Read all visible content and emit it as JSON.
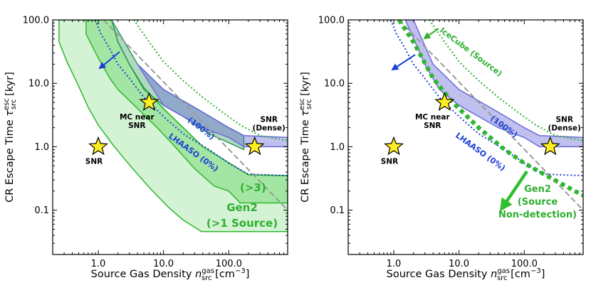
{
  "chart_data": [
    {
      "type": "area",
      "panel": "left",
      "xscale": "log",
      "yscale": "log",
      "xlim": [
        0.2,
        800
      ],
      "ylim": [
        0.02,
        100
      ],
      "xlabel_main": "Source Gas Density ",
      "xlabel_sym": "n",
      "xlabel_sup": "gas",
      "xlabel_sub": "src",
      "xlabel_unit": " [cm",
      "xlabel_unit_sup": "−3",
      "xlabel_close": "]",
      "ylabel_main": "CR Escape Time ",
      "ylabel_sym": "τ",
      "ylabel_sup": "esc",
      "ylabel_sub": "src",
      "ylabel_unit": " [kyr]",
      "xticks": [
        {
          "v": 1,
          "label": "1.0"
        },
        {
          "v": 10,
          "label": "10.0"
        },
        {
          "v": 100,
          "label": "100.0"
        }
      ],
      "yticks": [
        {
          "v": 0.1,
          "label": "0.1"
        },
        {
          "v": 1,
          "label": "1.0"
        },
        {
          "v": 10,
          "label": "10.0"
        },
        {
          "v": 100,
          "label": "100.0"
        }
      ],
      "regions": [
        {
          "name": "Gen2 (>1 Source)",
          "color": "#3cc83c",
          "opacity": 0.22,
          "edge": "#2db82d",
          "points": [
            [
              0.25,
              100
            ],
            [
              0.25,
              45
            ],
            [
              0.33,
              22
            ],
            [
              0.5,
              9
            ],
            [
              0.7,
              4.2
            ],
            [
              1,
              2.2
            ],
            [
              1.7,
              1.05
            ],
            [
              3,
              0.52
            ],
            [
              6,
              0.23
            ],
            [
              12,
              0.11
            ],
            [
              20,
              0.07
            ],
            [
              38,
              0.046
            ],
            [
              800,
              0.046
            ],
            [
              800,
              0.35
            ],
            [
              200,
              0.36
            ],
            [
              40,
              1.0
            ],
            [
              10,
              4.0
            ],
            [
              5,
              8.5
            ],
            [
              3,
              20
            ],
            [
              2,
              45
            ],
            [
              1.6,
              100
            ]
          ]
        },
        {
          "name": "Gen2 (>3)",
          "color": "#3cc83c",
          "opacity": 0.32,
          "edge": "#2db82d",
          "points": [
            [
              0.65,
              100
            ],
            [
              0.65,
              60
            ],
            [
              1,
              25
            ],
            [
              1.5,
              12
            ],
            [
              2,
              8
            ],
            [
              4,
              4
            ],
            [
              8,
              2
            ],
            [
              15,
              1.0
            ],
            [
              30,
              0.45
            ],
            [
              60,
              0.24
            ],
            [
              100,
              0.2
            ],
            [
              150,
              0.13
            ],
            [
              800,
              0.13
            ],
            [
              800,
              0.35
            ],
            [
              200,
              0.36
            ],
            [
              40,
              1.0
            ],
            [
              10,
              4.0
            ],
            [
              5,
              8.5
            ],
            [
              3,
              20
            ],
            [
              2,
              45
            ],
            [
              1.6,
              100
            ]
          ]
        },
        {
          "name": "Gen2 (100%)",
          "color": "#2f9a5a",
          "opacity": 0.38,
          "edge": "#2f9a5a",
          "points": [
            [
              1.6,
              100
            ],
            [
              4,
              20
            ],
            [
              10,
              8
            ],
            [
              40,
              3.5
            ],
            [
              100,
              2.0
            ],
            [
              170,
              1.5
            ],
            [
              170,
              0.9
            ],
            [
              50,
              1.6
            ],
            [
              20,
              3.0
            ],
            [
              10,
              4.5
            ],
            [
              5,
              8
            ],
            [
              3,
              20
            ],
            [
              2,
              45
            ]
          ]
        },
        {
          "name": "LHAASO (100%)",
          "color": "#6a6ad8",
          "opacity": 0.42,
          "edge": "#6a6ad8",
          "points": [
            [
              4,
              20
            ],
            [
              10,
              8
            ],
            [
              40,
              3.5
            ],
            [
              100,
              2.0
            ],
            [
              170,
              1.5
            ],
            [
              800,
              1.4
            ],
            [
              800,
              1.0
            ],
            [
              170,
              1.0
            ],
            [
              100,
              1.4
            ],
            [
              40,
              2.0
            ],
            [
              20,
              3.0
            ],
            [
              10,
              4.5
            ]
          ]
        }
      ],
      "lines": [
        {
          "name": "IceCube (Source)",
          "color": "#2fb02f",
          "dash": "2 3",
          "width": 2,
          "points": [
            [
              3.5,
              100
            ],
            [
              6,
              45
            ],
            [
              10,
              22
            ],
            [
              20,
              11
            ],
            [
              40,
              6
            ],
            [
              80,
              3.5
            ],
            [
              150,
              2.2
            ],
            [
              300,
              1.5
            ],
            [
              800,
              1.25
            ]
          ]
        },
        {
          "name": "LHAASO (0%)",
          "color": "#1a3fd6",
          "dash": "2 3",
          "width": 2,
          "points": [
            [
              0.9,
              100
            ],
            [
              1.1,
              60
            ],
            [
              1.5,
              35
            ],
            [
              2,
              20
            ],
            [
              3,
              12
            ],
            [
              5,
              6
            ],
            [
              10,
              3
            ],
            [
              20,
              1.6
            ],
            [
              50,
              0.9
            ],
            [
              100,
              0.55
            ],
            [
              200,
              0.37
            ],
            [
              800,
              0.35
            ]
          ]
        },
        {
          "name": "Dense scaling",
          "color": "#999999",
          "dash": "8 4",
          "width": 2,
          "points": [
            [
              1.2,
              100
            ],
            [
              800,
              0.1
            ]
          ]
        }
      ],
      "stars": [
        {
          "label": "SNR",
          "x": 1,
          "y": 1.0
        },
        {
          "label_l1": "MC near",
          "label_l2": "SNR",
          "x": 6,
          "y": 5.0
        },
        {
          "label_l1": "SNR",
          "label_l2": "(Dense)",
          "x": 250,
          "y": 1.0
        }
      ],
      "annotations": {
        "pct100": "(100%)",
        "lhaaso": "LHAASO (0%)",
        "gt3": "(>3)",
        "gen2": "Gen2",
        "gen2sub": "(>1 Source)"
      }
    },
    {
      "type": "line",
      "panel": "right",
      "xscale": "log",
      "yscale": "log",
      "xlim": [
        0.2,
        800
      ],
      "ylim": [
        0.02,
        100
      ],
      "xlabel_main": "Source Gas Density ",
      "xlabel_sym": "n",
      "xlabel_sup": "gas",
      "xlabel_sub": "src",
      "xlabel_unit": " [cm",
      "xlabel_unit_sup": "−3",
      "xlabel_close": "]",
      "ylabel_main": "CR Escape Time ",
      "ylabel_sym": "τ",
      "ylabel_sup": "esc",
      "ylabel_sub": "src",
      "ylabel_unit": " [kyr]",
      "xticks": [
        {
          "v": 1,
          "label": "1.0"
        },
        {
          "v": 10,
          "label": "10.0"
        },
        {
          "v": 100,
          "label": "100.0"
        }
      ],
      "yticks": [
        {
          "v": 0.1,
          "label": "0.1"
        },
        {
          "v": 1,
          "label": "1.0"
        },
        {
          "v": 10,
          "label": "10.0"
        },
        {
          "v": 100,
          "label": "100.0"
        }
      ],
      "regions": [
        {
          "name": "LHAASO (100%)",
          "color": "#6a6ad8",
          "opacity": 0.42,
          "edge": "#6a6ad8",
          "points": [
            [
              2,
              100
            ],
            [
              4,
              20
            ],
            [
              10,
              8
            ],
            [
              40,
              3.5
            ],
            [
              100,
              2.0
            ],
            [
              170,
              1.5
            ],
            [
              800,
              1.4
            ],
            [
              800,
              1.0
            ],
            [
              170,
              1.0
            ],
            [
              100,
              1.4
            ],
            [
              40,
              2.0
            ],
            [
              20,
              3.0
            ],
            [
              10,
              4.5
            ],
            [
              5,
              8
            ],
            [
              3,
              20
            ],
            [
              1.5,
              100
            ]
          ]
        }
      ],
      "lines": [
        {
          "name": "IceCube (Source)",
          "color": "#2fb02f",
          "dash": "2 3",
          "width": 2,
          "points": [
            [
              3.5,
              100
            ],
            [
              6,
              45
            ],
            [
              10,
              22
            ],
            [
              20,
              11
            ],
            [
              40,
              6
            ],
            [
              80,
              3.5
            ],
            [
              150,
              2.2
            ],
            [
              300,
              1.5
            ],
            [
              800,
              1.25
            ]
          ]
        },
        {
          "name": "LHAASO (0%)",
          "color": "#1a3fd6",
          "dash": "2 3",
          "width": 2,
          "points": [
            [
              0.9,
              100
            ],
            [
              1.1,
              60
            ],
            [
              1.5,
              35
            ],
            [
              2,
              20
            ],
            [
              3,
              12
            ],
            [
              5,
              6
            ],
            [
              10,
              3
            ],
            [
              20,
              1.6
            ],
            [
              50,
              0.9
            ],
            [
              100,
              0.55
            ],
            [
              200,
              0.37
            ],
            [
              800,
              0.35
            ]
          ]
        },
        {
          "name": "Dense scaling",
          "color": "#999999",
          "dash": "8 4",
          "width": 2,
          "points": [
            [
              1.2,
              100
            ],
            [
              800,
              0.1
            ]
          ]
        },
        {
          "name": "Gen2 (Source Non-detection)",
          "color": "#2fb82f",
          "dash": "6 5",
          "width": 6,
          "points": [
            [
              1.2,
              100
            ],
            [
              2,
              45
            ],
            [
              4,
              12
            ],
            [
              8,
              5
            ],
            [
              20,
              2
            ],
            [
              50,
              0.9
            ],
            [
              100,
              0.55
            ],
            [
              200,
              0.37
            ],
            [
              400,
              0.25
            ],
            [
              800,
              0.17
            ]
          ]
        }
      ],
      "stars": [
        {
          "label": "SNR",
          "x": 1,
          "y": 1.0
        },
        {
          "label_l1": "MC near",
          "label_l2": "SNR",
          "x": 6,
          "y": 5.0
        },
        {
          "label_l1": "SNR",
          "label_l2": "(Dense)",
          "x": 250,
          "y": 1.0
        }
      ],
      "annotations": {
        "icecube": "IceCube (Source)",
        "pct100": "(100%)",
        "lhaaso": "LHAASO (0%)",
        "gen2": "Gen2",
        "gen2l2": "(Source",
        "gen2l3": "Non-detection)"
      }
    }
  ],
  "colors": {
    "axis": "#000000",
    "star_fill": "#ffee22",
    "star_edge": "#000000",
    "blue_arrow": "#1a3fd6",
    "green_arrow": "#2fb02f"
  }
}
